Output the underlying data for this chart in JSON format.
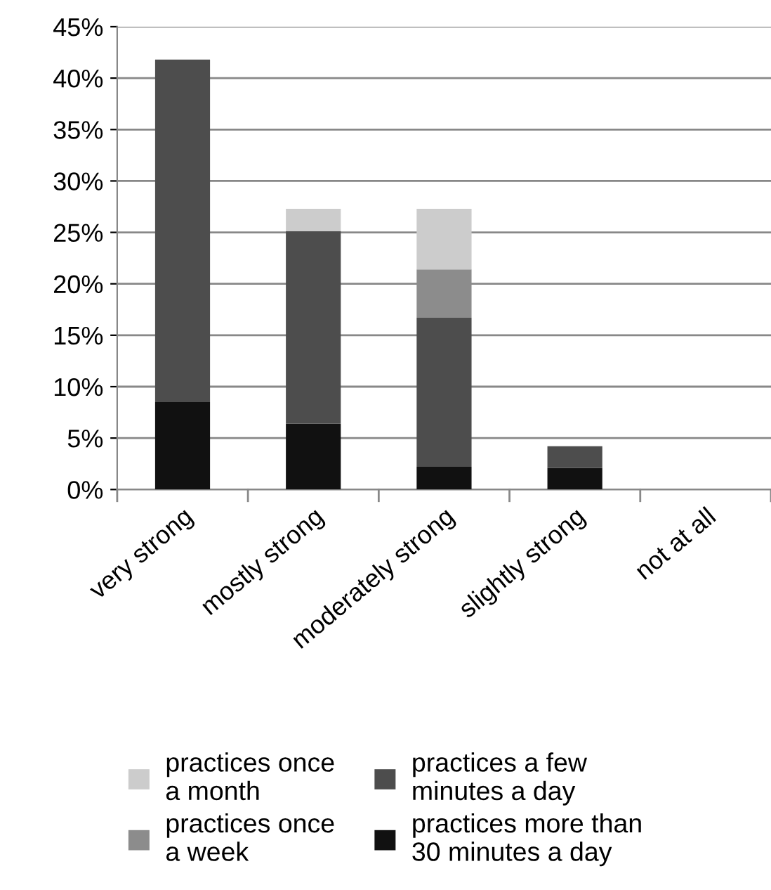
{
  "chart_data": {
    "type": "bar",
    "stacked": true,
    "categories": [
      "very strong",
      "mostly strong",
      "moderately strong",
      "slightly strong",
      "not at all"
    ],
    "series": [
      {
        "name": "practices more than\n30 minutes a day",
        "color": "#111111",
        "values": [
          8.5,
          6.4,
          2.2,
          2.1,
          0
        ]
      },
      {
        "name": "practices a few\nminutes a day",
        "color": "#4d4d4d",
        "values": [
          33.3,
          18.7,
          14.5,
          2.1,
          0
        ]
      },
      {
        "name": "practices once\na week",
        "color": "#8c8c8c",
        "values": [
          0,
          0,
          4.7,
          0,
          0
        ]
      },
      {
        "name": "practices once\na month",
        "color": "#cccccc",
        "values": [
          0,
          2.2,
          5.9,
          0,
          0
        ]
      }
    ],
    "ylim": [
      0,
      45
    ],
    "yticks": [
      {
        "value": 0,
        "label": "0%"
      },
      {
        "value": 5,
        "label": "5%"
      },
      {
        "value": 10,
        "label": "10%"
      },
      {
        "value": 15,
        "label": "15%"
      },
      {
        "value": 20,
        "label": "20%"
      },
      {
        "value": 25,
        "label": "25%"
      },
      {
        "value": 30,
        "label": "30%"
      },
      {
        "value": 35,
        "label": "35%"
      },
      {
        "value": 40,
        "label": "40%"
      },
      {
        "value": 45,
        "label": "45%"
      }
    ],
    "grid": "y",
    "legend": "bottom"
  }
}
